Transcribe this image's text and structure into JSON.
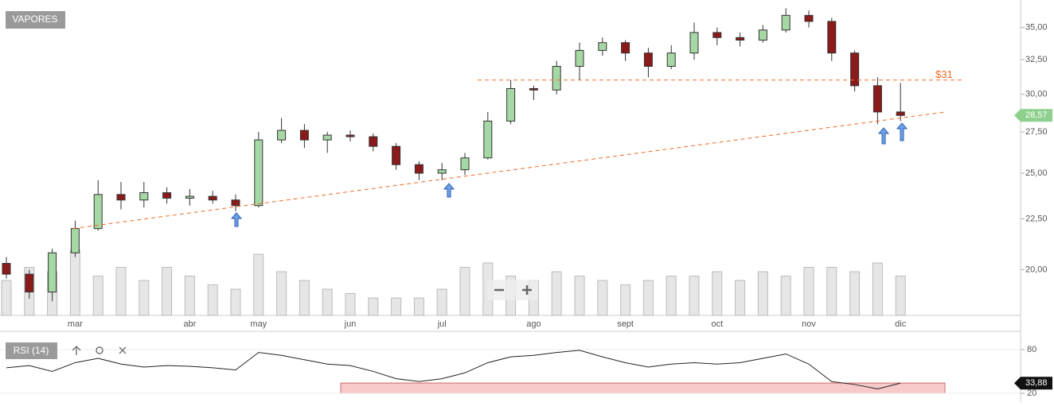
{
  "chart_data": [
    {
      "type": "candlestick",
      "title": "VAPORES",
      "categories": [
        null,
        null,
        null,
        "mar",
        null,
        null,
        null,
        null,
        "abr",
        null,
        null,
        "may",
        null,
        null,
        null,
        "jun",
        null,
        null,
        null,
        "jul",
        null,
        null,
        null,
        "ago",
        null,
        null,
        null,
        "sept",
        null,
        null,
        null,
        "oct",
        null,
        null,
        null,
        "nov",
        null,
        null,
        null,
        "dic"
      ],
      "open": [
        20.3,
        19.8,
        19.0,
        20.8,
        22.0,
        23.8,
        23.5,
        23.9,
        23.6,
        23.7,
        23.5,
        23.2,
        27.0,
        27.6,
        27.0,
        27.3,
        27.2,
        26.6,
        25.5,
        25.0,
        25.2,
        25.9,
        28.2,
        30.4,
        30.3,
        32.0,
        33.2,
        33.8,
        33.0,
        32.0,
        33.0,
        34.6,
        34.2,
        34.0,
        34.8,
        36.0,
        35.5,
        33.0,
        30.6,
        28.8
      ],
      "high": [
        20.6,
        20.0,
        21.0,
        22.4,
        24.6,
        24.5,
        24.5,
        24.2,
        24.1,
        24.0,
        23.8,
        27.5,
        28.4,
        28.0,
        27.5,
        27.6,
        27.4,
        26.8,
        25.7,
        25.6,
        26.2,
        28.8,
        31.0,
        30.6,
        32.4,
        33.8,
        34.2,
        34.0,
        33.4,
        33.6,
        35.4,
        35.0,
        34.6,
        35.2,
        36.6,
        36.4,
        35.8,
        33.2,
        31.2,
        30.8
      ],
      "low": [
        19.6,
        18.7,
        18.6,
        20.6,
        21.9,
        23.0,
        23.1,
        23.3,
        23.2,
        23.3,
        22.9,
        23.1,
        26.8,
        26.5,
        26.2,
        26.9,
        26.3,
        25.2,
        24.6,
        24.6,
        24.9,
        25.8,
        28.0,
        29.6,
        30.0,
        31.0,
        32.8,
        32.4,
        31.2,
        31.8,
        32.5,
        33.6,
        33.5,
        33.8,
        34.6,
        35.0,
        32.4,
        30.2,
        28.0,
        28.2
      ],
      "close": [
        19.8,
        19.0,
        20.8,
        22.0,
        23.8,
        23.5,
        23.9,
        23.6,
        23.7,
        23.5,
        23.2,
        27.0,
        27.6,
        27.0,
        27.3,
        27.2,
        26.6,
        25.5,
        25.0,
        25.2,
        25.9,
        28.2,
        30.4,
        30.3,
        32.0,
        33.2,
        33.8,
        33.0,
        32.0,
        33.0,
        34.6,
        34.2,
        34.0,
        34.8,
        36.0,
        35.5,
        33.0,
        30.6,
        28.8,
        28.57
      ],
      "value_labels": [
        null,
        null,
        null,
        null,
        null,
        null,
        null,
        null,
        null,
        null,
        null,
        null,
        null,
        null,
        null,
        null,
        null,
        null,
        null,
        null,
        null,
        null,
        null,
        null,
        null,
        null,
        null,
        null,
        null,
        null,
        null,
        null,
        null,
        null,
        null,
        null,
        null,
        null,
        null,
        "28,57"
      ],
      "volume": [
        40,
        55,
        50,
        75,
        45,
        55,
        40,
        55,
        45,
        35,
        30,
        70,
        50,
        40,
        30,
        25,
        20,
        20,
        20,
        30,
        55,
        60,
        45,
        40,
        50,
        45,
        40,
        35,
        40,
        45,
        45,
        50,
        40,
        50,
        45,
        55,
        55,
        50,
        60,
        45
      ],
      "volume_lim": [
        0,
        100
      ],
      "up_color": "#a6d8a6",
      "down_color": "#8b1a1a",
      "volume_color": "#e6e6e6",
      "log": true,
      "ylim": [
        18,
        37.3
      ],
      "yticks": [
        {
          "value": 20,
          "label": "20,00"
        },
        {
          "value": 22.5,
          "label": "22,50"
        },
        {
          "value": 25,
          "label": "25,00"
        },
        {
          "value": 27.5,
          "label": "27,50"
        },
        {
          "value": 30,
          "label": "30,00"
        },
        {
          "value": 32.5,
          "label": "32,50"
        },
        {
          "value": 35,
          "label": "35,00"
        }
      ],
      "hline": {
        "value": 31,
        "label": "$31"
      },
      "trendline": [
        22.0,
        28.8
      ],
      "line_color": "#f06a25"
    },
    {
      "type": "line",
      "title": "RSI (14)",
      "values": [
        55,
        58,
        50,
        62,
        68,
        60,
        56,
        58,
        57,
        55,
        52,
        76,
        72,
        66,
        60,
        58,
        50,
        40,
        36,
        40,
        48,
        62,
        70,
        72,
        76,
        79,
        70,
        62,
        56,
        60,
        62,
        60,
        62,
        68,
        74,
        60,
        36,
        32,
        26,
        33.88
      ],
      "value_labels": [
        null,
        null,
        null,
        null,
        null,
        null,
        null,
        null,
        null,
        null,
        null,
        null,
        null,
        null,
        null,
        null,
        null,
        null,
        null,
        null,
        null,
        null,
        null,
        null,
        null,
        null,
        null,
        null,
        null,
        null,
        null,
        null,
        null,
        null,
        null,
        null,
        null,
        null,
        null,
        "33,88"
      ],
      "color": "#222",
      "ylim": [
        9,
        104
      ],
      "yticks": [
        20,
        80
      ],
      "zone": [
        20,
        34
      ]
    }
  ]
}
